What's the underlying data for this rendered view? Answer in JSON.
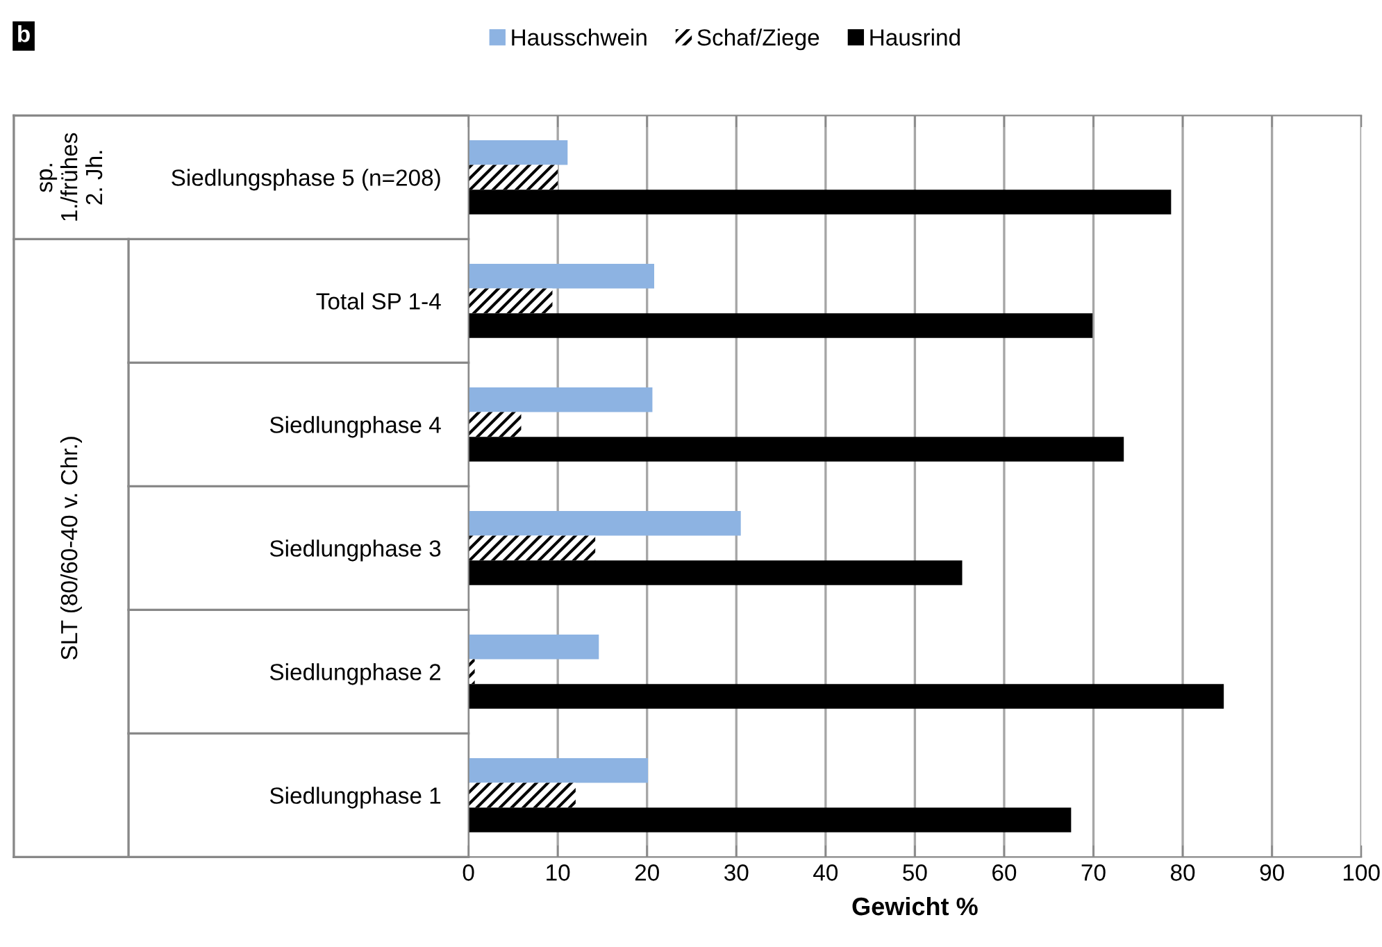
{
  "chart_data": {
    "type": "bar",
    "orientation": "horizontal",
    "categories": [
      "Siedlungsphase 5 (n=208)",
      "Total SP 1-4",
      "Siedlungphase 4",
      "Siedlungphase 3",
      "Siedlungphase 2",
      "Siedlungphase 1"
    ],
    "series": [
      {
        "name": "Hausschwein",
        "color": "#8db3e2",
        "values": [
          11.1,
          20.8,
          20.6,
          30.5,
          14.6,
          20.1
        ]
      },
      {
        "name": "Schaf/Ziege",
        "color": "#000000",
        "values": [
          10.0,
          9.4,
          5.9,
          14.2,
          0.7,
          12.0
        ]
      },
      {
        "name": "Hausrind",
        "color": "#000000",
        "values": [
          78.7,
          69.9,
          73.4,
          55.3,
          84.6,
          67.5
        ]
      }
    ],
    "xlim": [
      0,
      100
    ],
    "xticks": [
      0,
      10,
      20,
      30,
      40,
      50,
      60,
      70,
      80,
      90,
      100
    ],
    "xlabel": "Gewicht %",
    "grid": "x",
    "legend": "top",
    "annotations": [
      "b",
      "sp.\n1./frühes\n2. Jh.",
      "SLT (80/60-40 v. Chr.)"
    ]
  }
}
